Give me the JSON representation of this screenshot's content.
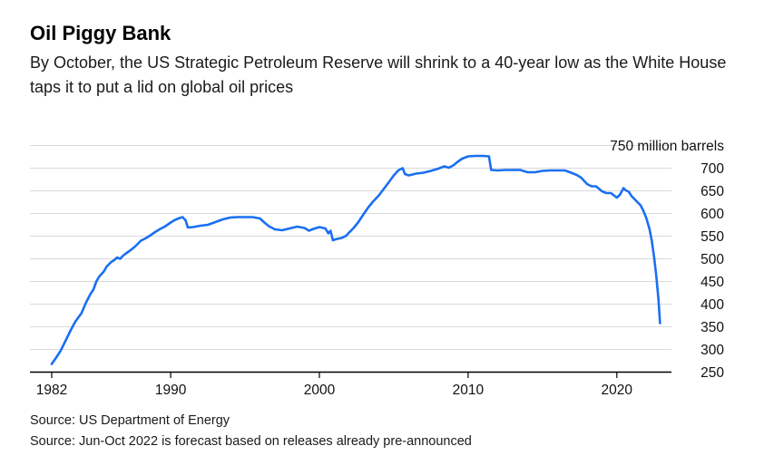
{
  "chart_data": {
    "type": "line",
    "title": "Oil Piggy Bank",
    "subtitle": "By October, the US Strategic Petroleum Reserve will shrink to a 40-year low as the White House taps it to put a lid on global oil prices",
    "sources": {
      "line1": "Source: US Department of Energy",
      "line2": "Source: Jun-Oct 2022 is forecast based on releases already pre-announced"
    },
    "unit_label": "750 million barrels",
    "ylabel": "million barrels",
    "ylim": [
      250,
      750
    ],
    "xlim": [
      1982,
      2023.3
    ],
    "y_ticks": [
      250,
      300,
      350,
      400,
      450,
      500,
      550,
      600,
      650,
      700,
      750
    ],
    "x_ticks": [
      1982,
      1990,
      2000,
      2010,
      2020
    ],
    "grid": "horizontal",
    "legend": "none",
    "line_color": "#1a6ff2",
    "grid_color": "#d9d9d9",
    "axis_color": "#000000",
    "tick_label_color": "#111111",
    "series": [
      {
        "name": "US Strategic Petroleum Reserve",
        "unit": "million barrels",
        "points": [
          [
            1982,
            268
          ],
          [
            1982.3,
            282
          ],
          [
            1982.6,
            297
          ],
          [
            1983,
            324
          ],
          [
            1983.3,
            344
          ],
          [
            1983.6,
            362
          ],
          [
            1984,
            380
          ],
          [
            1984.3,
            403
          ],
          [
            1984.6,
            422
          ],
          [
            1984.8,
            432
          ],
          [
            1985,
            450
          ],
          [
            1985.2,
            461
          ],
          [
            1985.5,
            472
          ],
          [
            1985.7,
            483
          ],
          [
            1986,
            493
          ],
          [
            1986.2,
            497
          ],
          [
            1986.4,
            503
          ],
          [
            1986.6,
            500
          ],
          [
            1986.8,
            507
          ],
          [
            1987,
            512
          ],
          [
            1987.3,
            519
          ],
          [
            1987.6,
            527
          ],
          [
            1988,
            540
          ],
          [
            1988.3,
            545
          ],
          [
            1988.6,
            551
          ],
          [
            1989,
            560
          ],
          [
            1989.3,
            566
          ],
          [
            1989.6,
            571
          ],
          [
            1990,
            580
          ],
          [
            1990.3,
            586
          ],
          [
            1990.6,
            590
          ],
          [
            1990.8,
            592
          ],
          [
            1991,
            585
          ],
          [
            1991.15,
            569
          ],
          [
            1991.5,
            570
          ],
          [
            1992,
            573
          ],
          [
            1992.5,
            575
          ],
          [
            1993,
            581
          ],
          [
            1993.5,
            587
          ],
          [
            1994,
            591
          ],
          [
            1994.5,
            592
          ],
          [
            1995,
            592
          ],
          [
            1995.5,
            592
          ],
          [
            1996,
            589
          ],
          [
            1996.3,
            580
          ],
          [
            1996.6,
            572
          ],
          [
            1997,
            565
          ],
          [
            1997.5,
            563
          ],
          [
            1998,
            567
          ],
          [
            1998.5,
            571
          ],
          [
            1999,
            568
          ],
          [
            1999.3,
            562
          ],
          [
            1999.6,
            566
          ],
          [
            2000,
            570
          ],
          [
            2000.4,
            567
          ],
          [
            2000.6,
            556
          ],
          [
            2000.75,
            562
          ],
          [
            2000.9,
            541
          ],
          [
            2001.2,
            544
          ],
          [
            2001.5,
            546
          ],
          [
            2001.8,
            551
          ],
          [
            2002,
            558
          ],
          [
            2002.3,
            568
          ],
          [
            2002.6,
            580
          ],
          [
            2003,
            600
          ],
          [
            2003.3,
            614
          ],
          [
            2003.6,
            626
          ],
          [
            2004,
            640
          ],
          [
            2004.3,
            653
          ],
          [
            2004.6,
            666
          ],
          [
            2005,
            684
          ],
          [
            2005.3,
            695
          ],
          [
            2005.6,
            700
          ],
          [
            2005.75,
            687
          ],
          [
            2006,
            684
          ],
          [
            2006.5,
            688
          ],
          [
            2007,
            690
          ],
          [
            2007.5,
            694
          ],
          [
            2008,
            699
          ],
          [
            2008.4,
            704
          ],
          [
            2008.7,
            701
          ],
          [
            2009,
            706
          ],
          [
            2009.3,
            714
          ],
          [
            2009.6,
            721
          ],
          [
            2010,
            726
          ],
          [
            2010.5,
            727
          ],
          [
            2011,
            727
          ],
          [
            2011.4,
            726
          ],
          [
            2011.55,
            696
          ],
          [
            2012,
            695
          ],
          [
            2012.5,
            696
          ],
          [
            2013,
            696
          ],
          [
            2013.5,
            696
          ],
          [
            2014,
            691
          ],
          [
            2014.5,
            691
          ],
          [
            2015,
            694
          ],
          [
            2015.5,
            695
          ],
          [
            2016,
            695
          ],
          [
            2016.5,
            695
          ],
          [
            2017,
            689
          ],
          [
            2017.3,
            685
          ],
          [
            2017.6,
            679
          ],
          [
            2018,
            665
          ],
          [
            2018.3,
            660
          ],
          [
            2018.6,
            660
          ],
          [
            2019,
            649
          ],
          [
            2019.3,
            645
          ],
          [
            2019.6,
            645
          ],
          [
            2020,
            635
          ],
          [
            2020.2,
            641
          ],
          [
            2020.45,
            656
          ],
          [
            2020.6,
            651
          ],
          [
            2020.8,
            648
          ],
          [
            2021,
            638
          ],
          [
            2021.3,
            628
          ],
          [
            2021.6,
            618
          ],
          [
            2021.8,
            605
          ],
          [
            2022,
            588
          ],
          [
            2022.2,
            565
          ],
          [
            2022.35,
            540
          ],
          [
            2022.5,
            505
          ],
          [
            2022.65,
            462
          ],
          [
            2022.8,
            410
          ],
          [
            2022.9,
            358
          ]
        ]
      }
    ]
  }
}
